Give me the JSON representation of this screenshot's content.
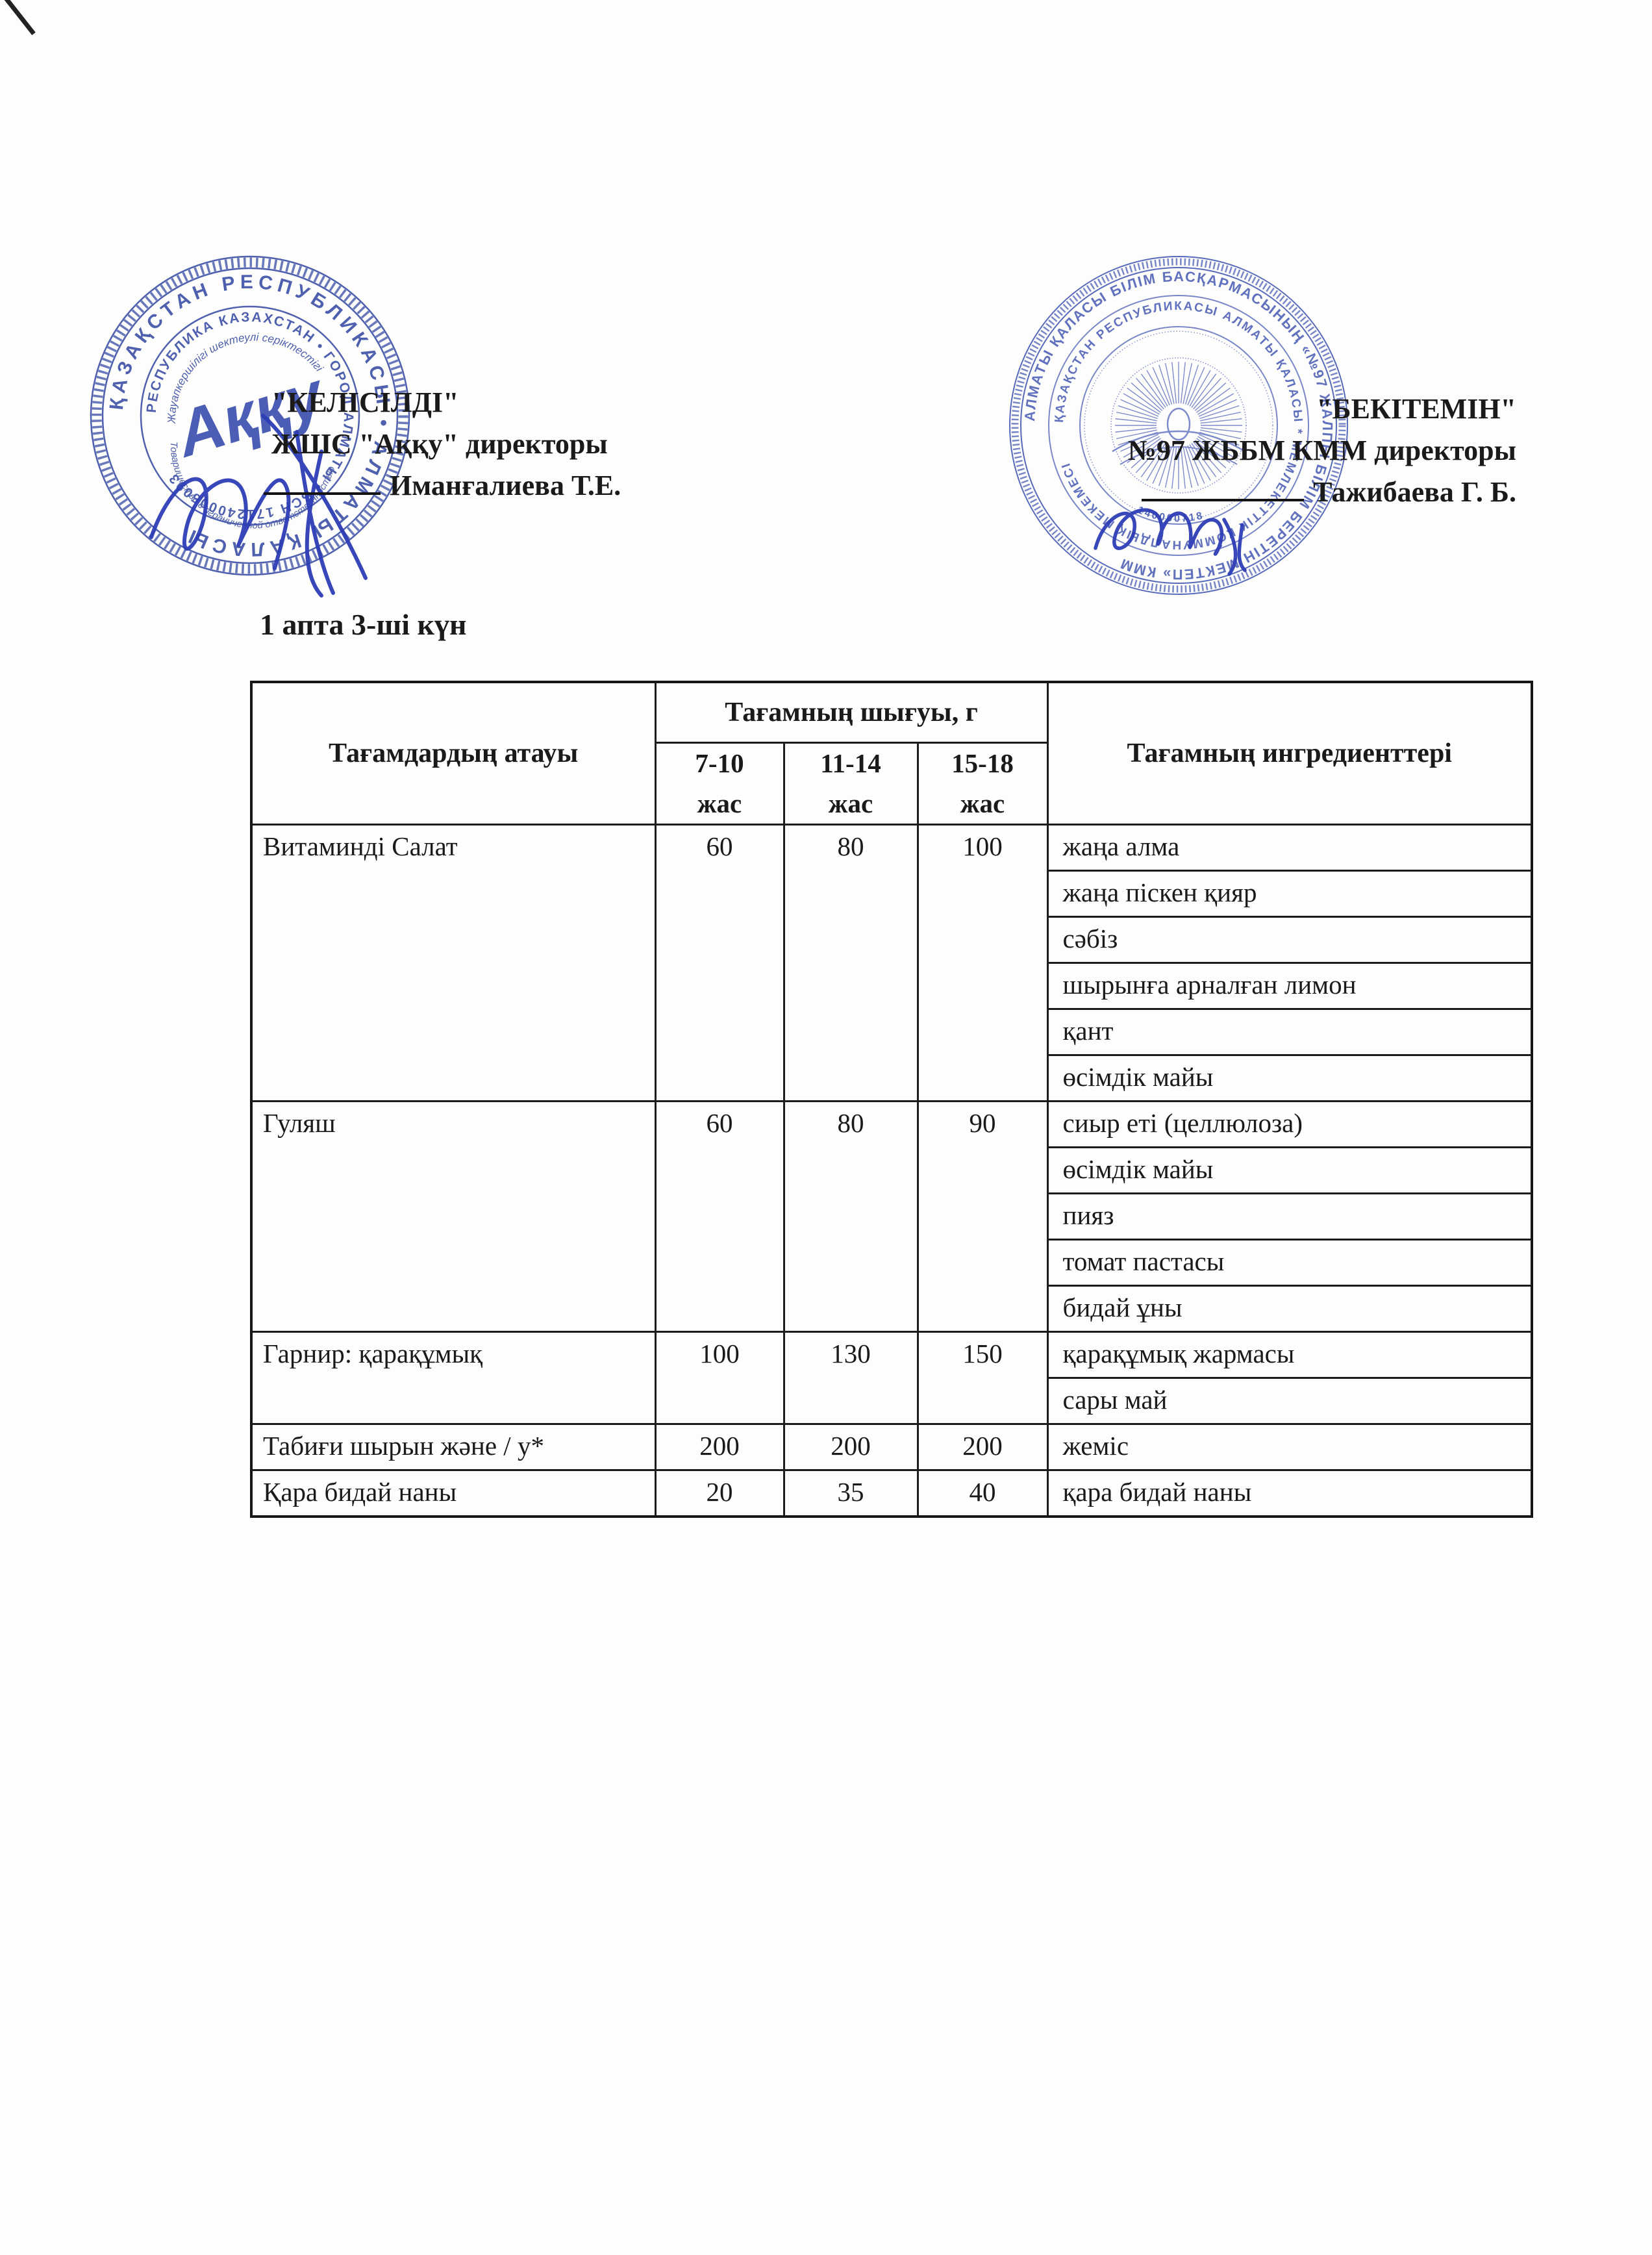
{
  "colors": {
    "stamp_blue": "#4053a8",
    "signature_blue": "#2d3db5",
    "ink_black": "#1a1a1a"
  },
  "week_title": "1 апта 3-ші күн",
  "approval_left": {
    "status": "\"КЕЛІСІЛДІ\"",
    "role_line": "ЖШС  \"Аққу\" директоры",
    "name": "Иманғалиева Т.Е."
  },
  "approval_right": {
    "status": "\"БЕКІТЕМІН\"",
    "role_line": "№97 ЖББМ КММ директоры",
    "name": "Тажибаева Г. Б."
  },
  "left_stamp": {
    "ring_outer": "ҚАЗАҚСТАН РЕСПУБЛИКАСЫ  •  АЛМАТЫ ҚАЛАСЫ",
    "ring_inner": "РЕСПУБЛИКА КАЗАХСТАН • ГОРОД АЛМАТЫ • БСН 171240005093",
    "arc_top": "Жауапкершілігі шектеулі серіктестігі",
    "arc_bottom": "Товарищество с ограниченной ответственностью",
    "center_name": "Аққу"
  },
  "right_stamp": {
    "ring_outer": "АЛМАТЫ ҚАЛАСЫ БІЛІМ БАСҚАРМАСЫНЫҢ «№97 ЖАЛПЫ БІЛІМ БЕРЕТІН МЕКТЕП» КММ",
    "ring_inner": "ҚАЗАҚСТАН РЕСПУБЛИКАСЫ АЛМАТЫ ҚАЛАСЫ * МЕМЛЕКЕТТІК КОММУНАЛДЫҚ МЕКЕМЕСІ",
    "registry_number": "140000718"
  },
  "menu_table": {
    "col_dish": "Тағамдардың атауы",
    "col_output_group": "Тағамның шығуы, г",
    "age_cols": [
      "7-10\nжас",
      "11-14\nжас",
      "15-18\nжас"
    ],
    "col_ingredients": "Тағамның ингредиенттері",
    "rows": [
      {
        "dish": "Витаминді Салат",
        "portions": [
          "60",
          "80",
          "100"
        ],
        "ingredients": [
          "жаңа алма",
          "жаңа піскен қияр",
          "сәбіз",
          "шырынға арналған лимон",
          "қант",
          "өсімдік майы"
        ]
      },
      {
        "dish": "Гуляш",
        "portions": [
          "60",
          "80",
          "90"
        ],
        "ingredients": [
          "сиыр еті (целлюлоза)",
          "өсімдік майы",
          "пияз",
          "томат пастасы",
          "бидай ұны"
        ]
      },
      {
        "dish": "Гарнир: қарақұмық",
        "portions": [
          "100",
          "130",
          "150"
        ],
        "ingredients": [
          "қарақұмық жармасы",
          "сары май"
        ]
      },
      {
        "dish": "Табиғи шырын және / у*",
        "portions": [
          "200",
          "200",
          "200"
        ],
        "ingredients": [
          "жеміс"
        ]
      },
      {
        "dish": "Қара бидай наны",
        "portions": [
          "20",
          "35",
          "40"
        ],
        "ingredients": [
          "қара бидай наны"
        ]
      }
    ]
  }
}
